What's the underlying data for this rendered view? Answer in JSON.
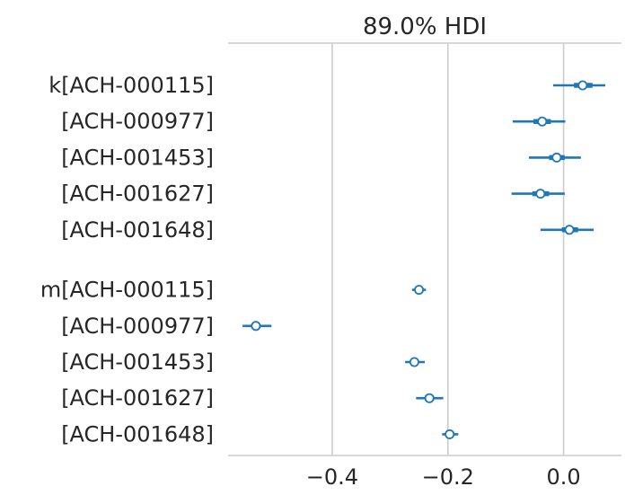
{
  "chart_data": {
    "type": "forest",
    "title": "89.0% HDI",
    "xlim": [
      -0.58,
      0.1
    ],
    "xticks": [
      {
        "value": -0.4,
        "label": "−0.4"
      },
      {
        "value": -0.2,
        "label": "−0.2"
      },
      {
        "value": 0.0,
        "label": "0.0"
      }
    ],
    "grid": "vertical",
    "color": "#1f77b4",
    "groups": [
      {
        "rows": [
          {
            "label": "k[ACH-000115]",
            "mean": 0.033,
            "hdi": [
              -0.018,
              0.072
            ],
            "iqr": [
              0.018,
              0.05
            ]
          },
          {
            "label": "[ACH-000977]",
            "mean": -0.037,
            "hdi": [
              -0.088,
              0.003
            ],
            "iqr": [
              -0.052,
              -0.022
            ]
          },
          {
            "label": "[ACH-001453]",
            "mean": -0.012,
            "hdi": [
              -0.06,
              0.03
            ],
            "iqr": [
              -0.025,
              0.002
            ]
          },
          {
            "label": "[ACH-001627]",
            "mean": -0.04,
            "hdi": [
              -0.09,
              0.002
            ],
            "iqr": [
              -0.054,
              -0.025
            ]
          },
          {
            "label": "[ACH-001648]",
            "mean": 0.01,
            "hdi": [
              -0.04,
              0.052
            ],
            "iqr": [
              -0.003,
              0.025
            ]
          }
        ]
      },
      {
        "rows": [
          {
            "label": "m[ACH-000115]",
            "mean": -0.25,
            "hdi": [
              -0.262,
              -0.238
            ],
            "iqr": [
              -0.254,
              -0.246
            ]
          },
          {
            "label": "[ACH-000977]",
            "mean": -0.532,
            "hdi": [
              -0.555,
              -0.505
            ],
            "iqr": [
              -0.54,
              -0.524
            ]
          },
          {
            "label": "[ACH-001453]",
            "mean": -0.258,
            "hdi": [
              -0.274,
              -0.24
            ],
            "iqr": [
              -0.264,
              -0.252
            ]
          },
          {
            "label": "[ACH-001627]",
            "mean": -0.232,
            "hdi": [
              -0.255,
              -0.208
            ],
            "iqr": [
              -0.24,
              -0.224
            ]
          },
          {
            "label": "[ACH-001648]",
            "mean": -0.197,
            "hdi": [
              -0.21,
              -0.182
            ],
            "iqr": [
              -0.202,
              -0.192
            ]
          }
        ]
      }
    ]
  }
}
